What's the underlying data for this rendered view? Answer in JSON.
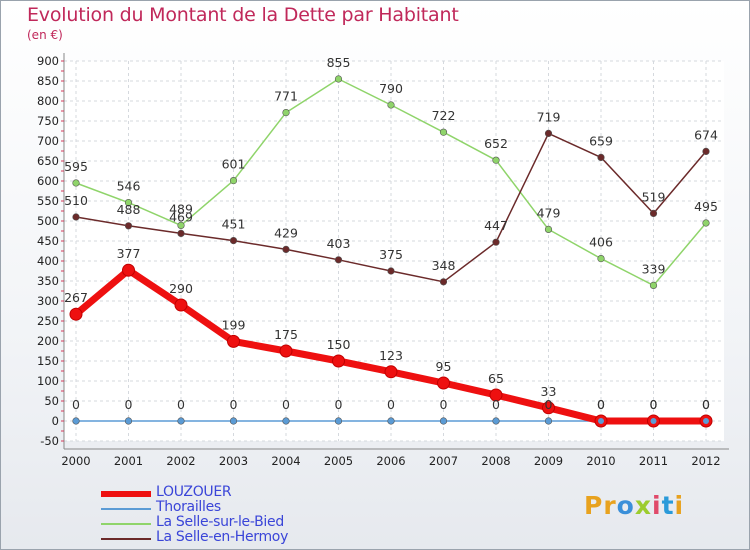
{
  "title": "Evolution du Montant de la Dette par Habitant",
  "subtitle": "(en €)",
  "logo": {
    "text": "Proxiti",
    "letter_colors": [
      "#e8a21e",
      "#e8a21e",
      "#3a8fd9",
      "#9ccc2e",
      "#e04a6a",
      "#2a9ad9",
      "#e8a21e"
    ]
  },
  "chart_data": {
    "type": "line",
    "categories": [
      "2000",
      "2001",
      "2002",
      "2003",
      "2004",
      "2005",
      "2006",
      "2007",
      "2008",
      "2009",
      "2010",
      "2011",
      "2012"
    ],
    "ylim": [
      -50,
      900
    ],
    "yticks": [
      "-50",
      "0",
      "50",
      "100",
      "150",
      "200",
      "250",
      "300",
      "350",
      "400",
      "450",
      "500",
      "550",
      "600",
      "650",
      "700",
      "750",
      "800",
      "850",
      "900"
    ],
    "grid": true,
    "legend_position": "bottom-left",
    "series": [
      {
        "name": "LOUZOUER",
        "color": "#ee1010",
        "legend_color": "#3a45d8",
        "values": [
          267,
          377,
          290,
          199,
          175,
          150,
          123,
          95,
          65,
          33,
          0,
          0,
          0
        ]
      },
      {
        "name": "Thorailles",
        "color": "#5b9bd5",
        "legend_color": "#3a45d8",
        "values": [
          0,
          0,
          0,
          0,
          0,
          0,
          0,
          0,
          0,
          0,
          0,
          0,
          0
        ]
      },
      {
        "name": "La Selle-sur-le-Bied",
        "color": "#8fd46a",
        "legend_color": "#3a45d8",
        "values": [
          595,
          546,
          489,
          601,
          771,
          855,
          790,
          722,
          652,
          479,
          406,
          339,
          495
        ]
      },
      {
        "name": "La Selle-en-Hermoy",
        "color": "#6b2a2a",
        "legend_color": "#3a45d8",
        "values": [
          510,
          488,
          469,
          451,
          429,
          403,
          375,
          348,
          447,
          719,
          659,
          519,
          674
        ]
      }
    ]
  }
}
